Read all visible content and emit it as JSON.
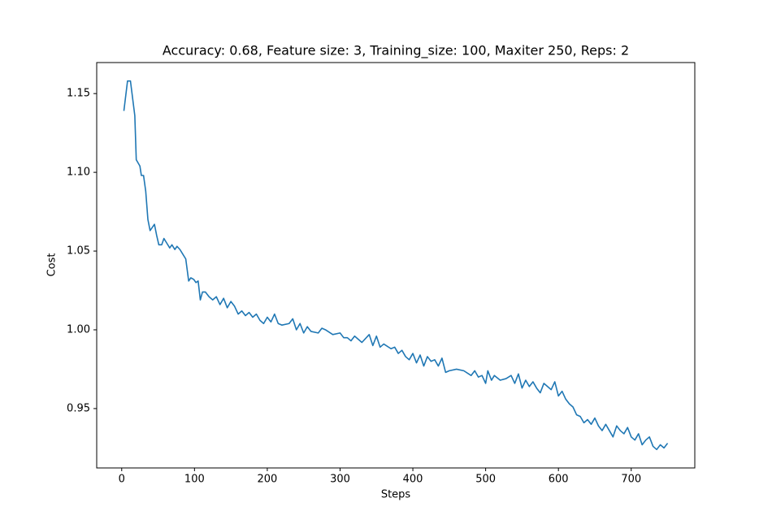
{
  "chart_data": {
    "type": "line",
    "title": "Accuracy: 0.68, Feature size: 3, Training_size: 100, Maxiter 250, Reps: 2",
    "xlabel": "Steps",
    "ylabel": "Cost",
    "x": [
      3,
      8,
      12,
      18,
      20,
      25,
      27,
      30,
      33,
      36,
      39,
      42,
      45,
      48,
      51,
      55,
      58,
      62,
      66,
      69,
      73,
      76,
      80,
      84,
      88,
      92,
      95,
      99,
      102,
      105,
      108,
      111,
      115,
      120,
      125,
      130,
      135,
      140,
      145,
      150,
      155,
      160,
      165,
      170,
      175,
      180,
      185,
      190,
      195,
      200,
      205,
      210,
      215,
      220,
      230,
      235,
      240,
      245,
      250,
      255,
      260,
      270,
      275,
      280,
      290,
      300,
      305,
      310,
      315,
      320,
      330,
      340,
      345,
      350,
      355,
      360,
      370,
      375,
      380,
      385,
      390,
      395,
      400,
      405,
      410,
      415,
      420,
      425,
      430,
      435,
      440,
      445,
      450,
      460,
      470,
      480,
      485,
      490,
      495,
      500,
      503,
      508,
      512,
      520,
      528,
      535,
      540,
      545,
      550,
      555,
      560,
      565,
      570,
      575,
      580,
      585,
      590,
      595,
      600,
      605,
      610,
      615,
      620,
      625,
      630,
      635,
      640,
      645,
      650,
      655,
      660,
      665,
      670,
      675,
      680,
      685,
      690,
      695,
      700,
      705,
      710,
      715,
      720,
      725,
      730,
      735,
      740,
      745,
      750
    ],
    "series": [
      {
        "name": "Cost",
        "color": "#1f77b4",
        "values": [
          1.139,
          1.158,
          1.158,
          1.136,
          1.108,
          1.104,
          1.098,
          1.098,
          1.088,
          1.07,
          1.063,
          1.065,
          1.067,
          1.06,
          1.054,
          1.054,
          1.058,
          1.055,
          1.052,
          1.054,
          1.051,
          1.053,
          1.051,
          1.048,
          1.045,
          1.031,
          1.033,
          1.032,
          1.03,
          1.031,
          1.019,
          1.024,
          1.024,
          1.021,
          1.019,
          1.021,
          1.016,
          1.02,
          1.014,
          1.018,
          1.015,
          1.01,
          1.012,
          1.009,
          1.011,
          1.008,
          1.01,
          1.006,
          1.004,
          1.008,
          1.005,
          1.01,
          1.004,
          1.003,
          1.004,
          1.007,
          1.0,
          1.004,
          0.998,
          1.002,
          0.999,
          0.998,
          1.001,
          1.0,
          0.997,
          0.998,
          0.995,
          0.995,
          0.993,
          0.996,
          0.992,
          0.997,
          0.99,
          0.996,
          0.989,
          0.991,
          0.988,
          0.989,
          0.985,
          0.987,
          0.983,
          0.981,
          0.985,
          0.979,
          0.984,
          0.977,
          0.983,
          0.98,
          0.981,
          0.977,
          0.982,
          0.973,
          0.974,
          0.975,
          0.974,
          0.971,
          0.974,
          0.97,
          0.971,
          0.966,
          0.974,
          0.968,
          0.971,
          0.968,
          0.969,
          0.971,
          0.966,
          0.972,
          0.963,
          0.968,
          0.964,
          0.967,
          0.963,
          0.96,
          0.966,
          0.964,
          0.962,
          0.967,
          0.958,
          0.961,
          0.956,
          0.953,
          0.951,
          0.946,
          0.945,
          0.941,
          0.943,
          0.94,
          0.944,
          0.939,
          0.936,
          0.94,
          0.936,
          0.932,
          0.939,
          0.936,
          0.934,
          0.938,
          0.932,
          0.93,
          0.934,
          0.927,
          0.93,
          0.932,
          0.926,
          0.924,
          0.927,
          0.925,
          0.928
        ]
      }
    ],
    "xlim": [
      -34.35,
      787.35
    ],
    "xticks": [
      0,
      100,
      200,
      300,
      400,
      500,
      600,
      700
    ],
    "ylim": [
      0.9123,
      1.1697
    ],
    "yticks": [
      0.95,
      {
        "value": 1.0,
        "label": "1.00"
      },
      1.05,
      {
        "value": 1.1,
        "label": "1.10"
      },
      1.15
    ]
  }
}
